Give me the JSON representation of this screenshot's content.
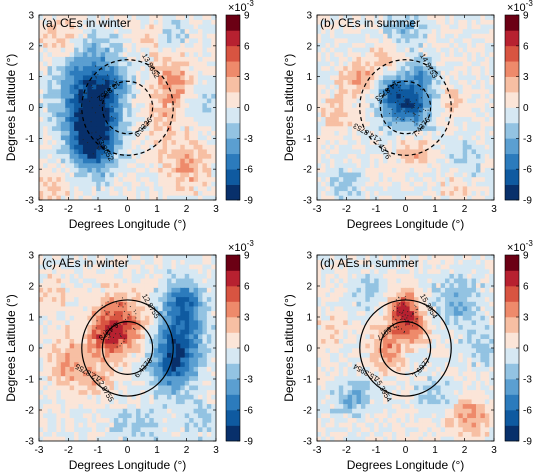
{
  "chart_data": [
    {
      "type": "heatmap",
      "title": "(a) CEs in winter",
      "xlabel": "Degrees Longitude (°)",
      "ylabel": "Degrees Latitude (°)",
      "xlim": [
        -3,
        3
      ],
      "ylim": [
        -3,
        3
      ],
      "xticks": [
        "-3",
        "-2",
        "-1",
        "0",
        "1",
        "2",
        "3"
      ],
      "yticks": [
        "-3",
        "-2",
        "-1",
        "0",
        "1",
        "2",
        "3"
      ],
      "colorbar": {
        "ticks": [
          "9",
          "6",
          "3",
          "0",
          "-3",
          "-6",
          "-9"
        ],
        "exponent_label": "×10",
        "exponent_power": "-3",
        "range": [
          -9,
          9
        ]
      },
      "contours": {
        "style": "dashed",
        "levels": [
          "13.8652",
          "6.9326"
        ],
        "labels": [
          "13.8652",
          "6.9326",
          "13.8652",
          "13.8652"
        ]
      },
      "features": [
        {
          "x": -1.0,
          "y": 0.0,
          "sx": 0.55,
          "sy": 1.2,
          "a": -8
        },
        {
          "x": -1.3,
          "y": -1.1,
          "sx": 0.45,
          "sy": 0.6,
          "a": -5
        },
        {
          "x": -1.8,
          "y": 0.4,
          "sx": 0.6,
          "sy": 1.0,
          "a": -3
        },
        {
          "x": -0.3,
          "y": 0.9,
          "sx": 0.35,
          "sy": 0.35,
          "a": -2
        },
        {
          "x": 1.5,
          "y": 0.8,
          "sx": 0.5,
          "sy": 0.6,
          "a": 3.5
        },
        {
          "x": 1.3,
          "y": -0.6,
          "sx": 0.4,
          "sy": 0.5,
          "a": 2
        },
        {
          "x": 2.0,
          "y": -1.9,
          "sx": 0.5,
          "sy": 0.5,
          "a": 3
        },
        {
          "x": -2.3,
          "y": 2.3,
          "sx": 0.5,
          "sy": 0.5,
          "a": 2
        },
        {
          "x": 0.9,
          "y": 2.3,
          "sx": 0.4,
          "sy": 0.4,
          "a": 2
        },
        {
          "x": 1.4,
          "y": 2.4,
          "sx": 0.4,
          "sy": 0.4,
          "a": -2
        },
        {
          "x": -2.5,
          "y": -2.5,
          "sx": 0.5,
          "sy": 0.5,
          "a": 1.5
        },
        {
          "x": 2.6,
          "y": 0.2,
          "sx": 0.4,
          "sy": 0.5,
          "a": -1.5
        }
      ]
    },
    {
      "type": "heatmap",
      "title": "(b) CEs in summer",
      "xlabel": "Degrees Longitude (°)",
      "ylabel": "Degrees Latitude (°)",
      "xlim": [
        -3,
        3
      ],
      "ylim": [
        -3,
        3
      ],
      "xticks": [
        "-3",
        "-2",
        "-1",
        "0",
        "1",
        "2",
        "3"
      ],
      "yticks": [
        "-3",
        "-2",
        "-1",
        "0",
        "1",
        "2",
        "3"
      ],
      "colorbar": {
        "ticks": [
          "9",
          "6",
          "3",
          "0",
          "-3",
          "-6",
          "-9"
        ],
        "exponent_label": "×10",
        "exponent_power": "-3",
        "range": [
          -9,
          9
        ]
      },
      "contours": {
        "style": "dashed",
        "levels": [
          "14.8753",
          "7.4376"
        ],
        "labels": [
          "14.8753",
          "7.4376",
          "14.8753",
          "7.4376",
          "14.8753"
        ]
      },
      "features": [
        {
          "x": 0.1,
          "y": 0.1,
          "sx": 0.6,
          "sy": 0.55,
          "a": -7
        },
        {
          "x": -0.4,
          "y": 0.6,
          "sx": 0.35,
          "sy": 0.35,
          "a": -3
        },
        {
          "x": 0.6,
          "y": 1.1,
          "sx": 0.4,
          "sy": 0.35,
          "a": -3
        },
        {
          "x": 0.0,
          "y": 2.6,
          "sx": 0.5,
          "sy": 0.5,
          "a": -2.5
        },
        {
          "x": -1.5,
          "y": 1.0,
          "sx": 0.4,
          "sy": 0.4,
          "a": 3
        },
        {
          "x": -0.6,
          "y": 1.7,
          "sx": 0.35,
          "sy": 0.35,
          "a": 2
        },
        {
          "x": 1.5,
          "y": 0.1,
          "sx": 0.4,
          "sy": 0.4,
          "a": 2
        },
        {
          "x": 0.3,
          "y": -1.4,
          "sx": 0.4,
          "sy": 0.4,
          "a": 2.5
        },
        {
          "x": -2.3,
          "y": -0.2,
          "sx": 0.4,
          "sy": 0.5,
          "a": 2
        },
        {
          "x": -2.0,
          "y": -2.5,
          "sx": 0.4,
          "sy": 0.4,
          "a": -2
        },
        {
          "x": 2.0,
          "y": -1.8,
          "sx": 0.5,
          "sy": 0.5,
          "a": -2
        },
        {
          "x": 1.8,
          "y": -2.5,
          "sx": 0.4,
          "sy": 0.4,
          "a": 2
        }
      ]
    },
    {
      "type": "heatmap",
      "title": "(c) AEs in winter",
      "xlabel": "Degrees Longitude (°)",
      "ylabel": "Degrees Latitude (°)",
      "xlim": [
        -3,
        3
      ],
      "ylim": [
        -3,
        3
      ],
      "xticks": [
        "-3",
        "-2",
        "-1",
        "0",
        "1",
        "2",
        "3"
      ],
      "yticks": [
        "-3",
        "-2",
        "-1",
        "0",
        "1",
        "2",
        "3"
      ],
      "colorbar": {
        "ticks": [
          "9",
          "6",
          "3",
          "0",
          "-3",
          "-6",
          "-9"
        ],
        "exponent_label": "×10",
        "exponent_power": "-3",
        "range": [
          -9,
          9
        ]
      },
      "contours": {
        "style": "solid",
        "levels": [
          "12.8755",
          "6.4378"
        ],
        "labels": [
          "12.8755",
          "6.4378",
          "6.4378",
          "12.8755",
          "12.8755"
        ]
      },
      "features": [
        {
          "x": -0.3,
          "y": 0.8,
          "sx": 0.6,
          "sy": 0.65,
          "a": 5.5
        },
        {
          "x": -0.7,
          "y": 0.3,
          "sx": 0.45,
          "sy": 0.4,
          "a": 3
        },
        {
          "x": 1.8,
          "y": 0.6,
          "sx": 0.55,
          "sy": 0.9,
          "a": -6
        },
        {
          "x": 1.5,
          "y": -0.6,
          "sx": 0.5,
          "sy": 0.6,
          "a": -5
        },
        {
          "x": 2.0,
          "y": 1.6,
          "sx": 0.4,
          "sy": 0.4,
          "a": -3
        },
        {
          "x": -1.9,
          "y": -0.5,
          "sx": 0.5,
          "sy": 0.6,
          "a": 3
        },
        {
          "x": -1.0,
          "y": -1.0,
          "sx": 0.4,
          "sy": 0.4,
          "a": 2
        },
        {
          "x": 0.3,
          "y": -2.5,
          "sx": 0.6,
          "sy": 0.4,
          "a": -2
        },
        {
          "x": -2.5,
          "y": 1.8,
          "sx": 0.4,
          "sy": 0.4,
          "a": 1.5
        },
        {
          "x": 2.5,
          "y": -2.3,
          "sx": 0.4,
          "sy": 0.4,
          "a": -2
        }
      ]
    },
    {
      "type": "heatmap",
      "title": "(d) AEs in summer",
      "xlabel": "Degrees Longitude (°)",
      "ylabel": "Degrees Latitude (°)",
      "xlim": [
        -3,
        3
      ],
      "ylim": [
        -3,
        3
      ],
      "xticks": [
        "-3",
        "-2",
        "-1",
        "0",
        "1",
        "2",
        "3"
      ],
      "yticks": [
        "-3",
        "-2",
        "-1",
        "0",
        "1",
        "2",
        "3"
      ],
      "colorbar": {
        "ticks": [
          "9",
          "6",
          "3",
          "0",
          "-3",
          "-6",
          "-9"
        ],
        "exponent_label": "×10",
        "exponent_power": "-3",
        "range": [
          -9,
          9
        ]
      },
      "contours": {
        "style": "solid",
        "levels": [
          "15.3954",
          "7.6977"
        ],
        "labels": [
          "15.3954",
          "7.6977",
          "7.6977",
          "15.3954",
          "15.3954"
        ]
      },
      "features": [
        {
          "x": 0.0,
          "y": 1.1,
          "sx": 0.35,
          "sy": 0.5,
          "a": 7
        },
        {
          "x": -0.6,
          "y": 0.0,
          "sx": 0.35,
          "sy": 0.5,
          "a": 4
        },
        {
          "x": 0.5,
          "y": 0.6,
          "sx": 0.3,
          "sy": 0.3,
          "a": 2.5
        },
        {
          "x": 2.2,
          "y": -2.2,
          "sx": 0.45,
          "sy": 0.4,
          "a": 3.5
        },
        {
          "x": 1.8,
          "y": 1.5,
          "sx": 0.5,
          "sy": 0.6,
          "a": -3
        },
        {
          "x": -1.8,
          "y": -1.6,
          "sx": 0.45,
          "sy": 0.4,
          "a": -3
        },
        {
          "x": -1.3,
          "y": 1.9,
          "sx": 0.4,
          "sy": 0.4,
          "a": -2
        },
        {
          "x": 1.0,
          "y": -1.5,
          "sx": 0.4,
          "sy": 0.4,
          "a": -2
        },
        {
          "x": -2.5,
          "y": 0.6,
          "sx": 0.4,
          "sy": 0.4,
          "a": 1.5
        },
        {
          "x": 2.6,
          "y": 0.0,
          "sx": 0.4,
          "sy": 0.4,
          "a": -2
        }
      ]
    }
  ]
}
